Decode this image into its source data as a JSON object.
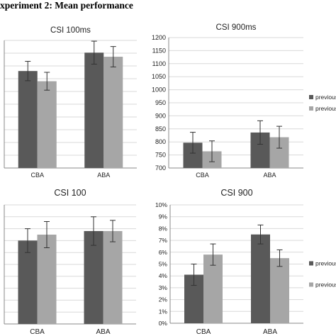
{
  "page": {
    "title": "xperiment 2: Mean performance"
  },
  "chart_data": [
    {
      "type": "bar",
      "title": "CSI 100ms",
      "categories": [
        "CBA",
        "ABA"
      ],
      "series": [
        {
          "values": [
            1080,
            1152
          ],
          "errors": [
            38,
            45
          ],
          "color": "#595959"
        },
        {
          "values": [
            1040,
            1136
          ],
          "errors": [
            35,
            40
          ],
          "color": "#a6a6a6"
        }
      ],
      "ylim": [
        700,
        1200
      ],
      "ticks": [],
      "grid": true,
      "legend": []
    },
    {
      "type": "bar",
      "title": "CSI 900ms",
      "categories": [
        "CBA",
        "ABA"
      ],
      "series": [
        {
          "name": "previous",
          "values": [
            797,
            836
          ],
          "errors": [
            40,
            45
          ],
          "color": "#595959"
        },
        {
          "name": "previous",
          "values": [
            764,
            818
          ],
          "errors": [
            40,
            42
          ],
          "color": "#a6a6a6"
        }
      ],
      "ylim": [
        700,
        1200
      ],
      "ticks": [
        "700",
        "750",
        "800",
        "850",
        "900",
        "950",
        "1000",
        "1050",
        "1100",
        "1150",
        "1200"
      ],
      "grid": true,
      "legend": [
        "previous",
        "previous"
      ],
      "legend_position": "right"
    },
    {
      "type": "bar",
      "title": "CSI 100",
      "categories": [
        "CBA",
        "ABA"
      ],
      "series": [
        {
          "values": [
            0.07,
            0.078
          ],
          "errors": [
            0.01,
            0.012
          ],
          "color": "#595959"
        },
        {
          "values": [
            0.075,
            0.078
          ],
          "errors": [
            0.011,
            0.009
          ],
          "color": "#a6a6a6"
        }
      ],
      "ylim": [
        0,
        0.1
      ],
      "ticks": [],
      "grid": true,
      "legend": []
    },
    {
      "type": "bar",
      "title": "CSI 900",
      "categories": [
        "CBA",
        "ABA"
      ],
      "series": [
        {
          "name": "previous_",
          "values": [
            0.041,
            0.075
          ],
          "errors": [
            0.009,
            0.008
          ],
          "color": "#595959"
        },
        {
          "name": "previous_",
          "values": [
            0.058,
            0.055
          ],
          "errors": [
            0.009,
            0.007
          ],
          "color": "#a6a6a6"
        }
      ],
      "ylim": [
        0,
        0.1
      ],
      "ticks": [
        "0%",
        "1%",
        "2%",
        "3%",
        "4%",
        "5%",
        "6%",
        "7%",
        "8%",
        "9%",
        "10%"
      ],
      "grid": true,
      "legend": [
        "previous_",
        "previous_"
      ],
      "legend_position": "right"
    }
  ]
}
